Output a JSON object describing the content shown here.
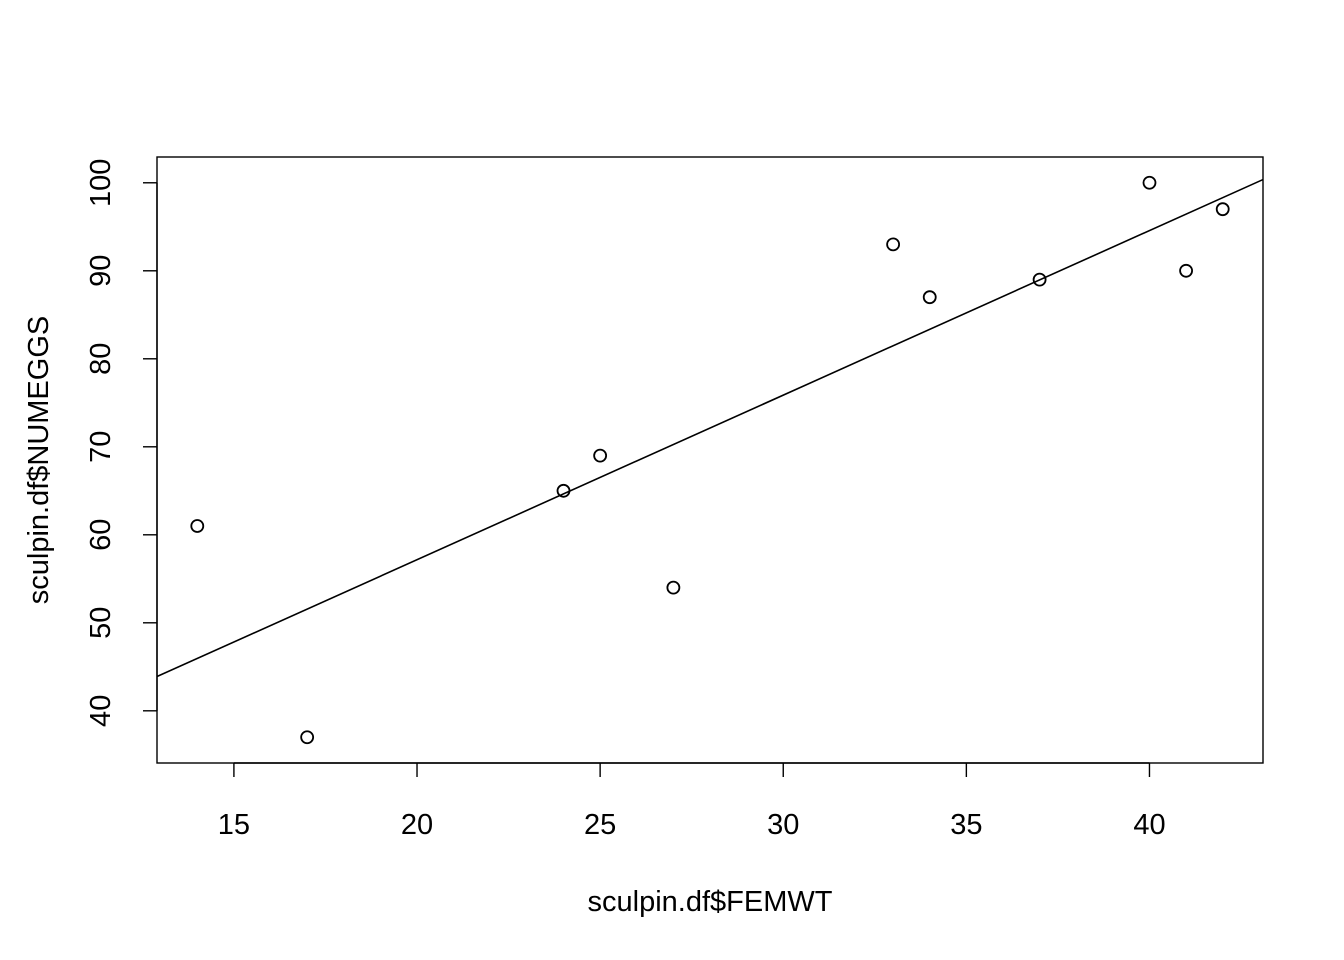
{
  "chart_data": {
    "type": "scatter",
    "title": "",
    "xlabel": "sculpin.df$FEMWT",
    "ylabel": "sculpin.df$NUMEGGS",
    "xlim": [
      12.9,
      43.1
    ],
    "ylim": [
      34.07,
      102.93
    ],
    "xticks": [
      15,
      20,
      25,
      30,
      35,
      40
    ],
    "yticks": [
      40,
      50,
      60,
      70,
      80,
      90,
      100
    ],
    "grid": false,
    "legend": "none",
    "points": [
      {
        "x": 14,
        "y": 61
      },
      {
        "x": 17,
        "y": 37
      },
      {
        "x": 24,
        "y": 65
      },
      {
        "x": 25,
        "y": 69
      },
      {
        "x": 27,
        "y": 54
      },
      {
        "x": 33,
        "y": 93
      },
      {
        "x": 34,
        "y": 87
      },
      {
        "x": 37,
        "y": 89
      },
      {
        "x": 40,
        "y": 100
      },
      {
        "x": 41,
        "y": 90
      },
      {
        "x": 42,
        "y": 97
      }
    ],
    "fit_line": {
      "intercept": 19.77,
      "slope": 1.87
    },
    "colors": {
      "points": "#000000",
      "line": "#000000",
      "background": "#ffffff"
    }
  }
}
